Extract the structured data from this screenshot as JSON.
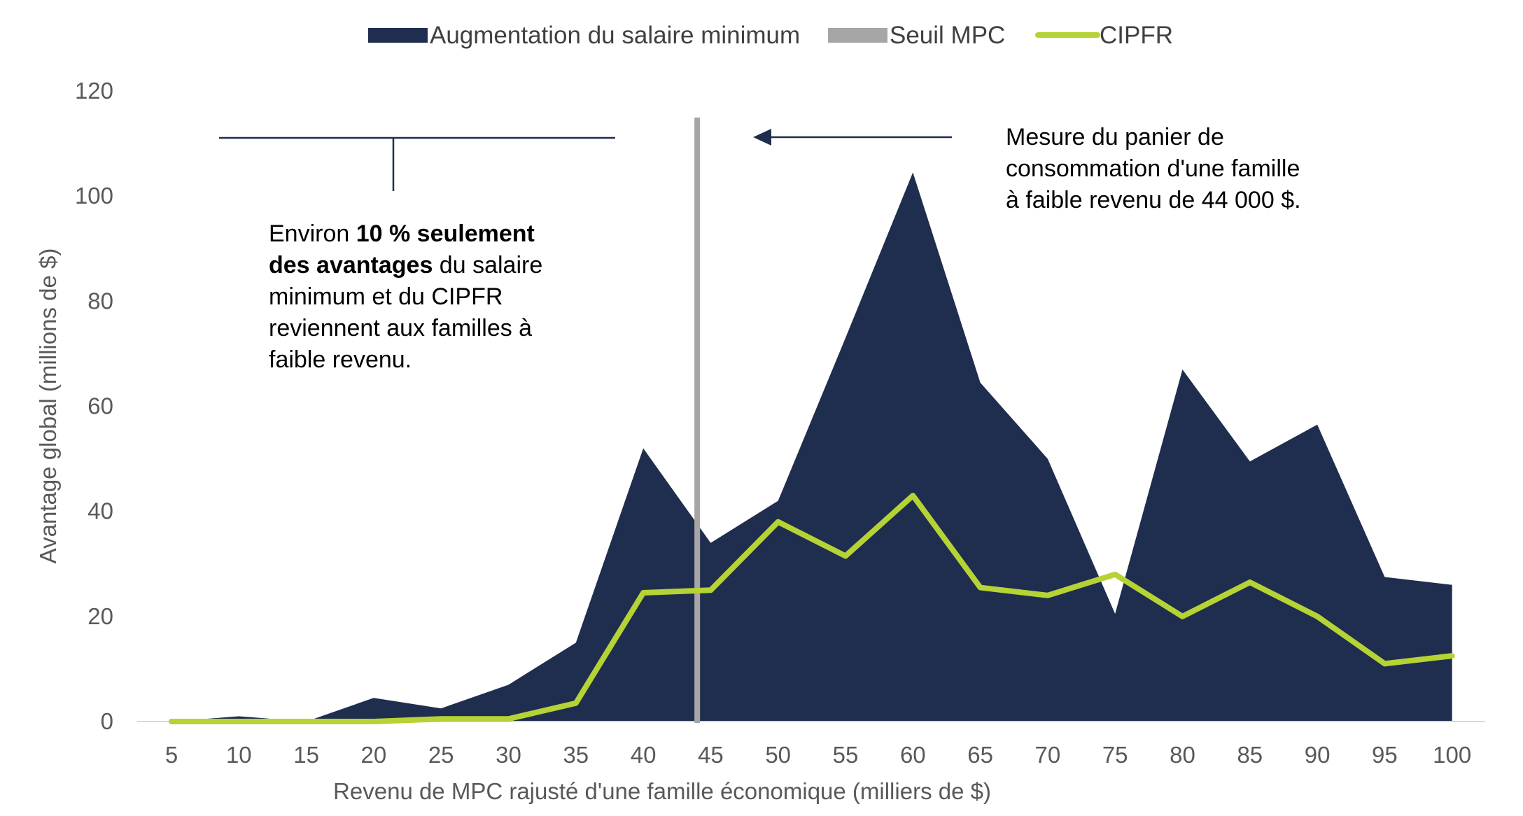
{
  "chart_data": {
    "type": "area",
    "xlabel": "Revenu de MPC rajusté d'une famille économique (milliers de $)",
    "ylabel": "Avantage global (millions de $)",
    "ylim": [
      0,
      120
    ],
    "yticks": [
      0,
      20,
      40,
      60,
      80,
      100,
      120
    ],
    "categories": [
      "5",
      "10",
      "15",
      "20",
      "25",
      "30",
      "35",
      "40",
      "45",
      "50",
      "55",
      "60",
      "65",
      "70",
      "75",
      "80",
      "85",
      "90",
      "95",
      "100"
    ],
    "legend_position": "top-center",
    "grid": false,
    "series": [
      {
        "name": "Augmentation du salaire minimum",
        "kind": "area",
        "color": "#1f2d4e",
        "values": [
          0,
          1,
          0,
          4.5,
          2.5,
          7,
          15,
          52,
          34,
          42,
          73,
          104.5,
          64.5,
          50,
          20.5,
          67,
          49.5,
          56.5,
          27.5,
          26
        ]
      },
      {
        "name": "CIPFR",
        "kind": "line",
        "color": "#b5d334",
        "values": [
          0,
          0,
          0,
          0,
          0.5,
          0.5,
          3.5,
          24.5,
          25,
          38,
          31.5,
          43,
          25.5,
          24,
          28,
          20,
          26.5,
          20,
          11,
          12.5
        ]
      }
    ],
    "threshold": {
      "name": "Seuil MPC",
      "x": 44,
      "color": "#a6a6a6"
    },
    "annotations": {
      "left": {
        "lines": [
          [
            {
              "text": "Environ ",
              "bold": false
            },
            {
              "text": "10 % seulement",
              "bold": true
            }
          ],
          [
            {
              "text": "des avantages",
              "bold": true
            },
            {
              "text": " du salaire",
              "bold": false
            }
          ],
          [
            {
              "text": "minimum et du CIPFR",
              "bold": false
            }
          ],
          [
            {
              "text": "reviennent aux familles à",
              "bold": false
            }
          ],
          [
            {
              "text": "faible revenu.",
              "bold": false
            }
          ]
        ]
      },
      "right": {
        "lines": [
          "Mesure du panier de",
          "consommation d'une famille",
          "à faible revenu de 44 000 $."
        ]
      }
    }
  }
}
